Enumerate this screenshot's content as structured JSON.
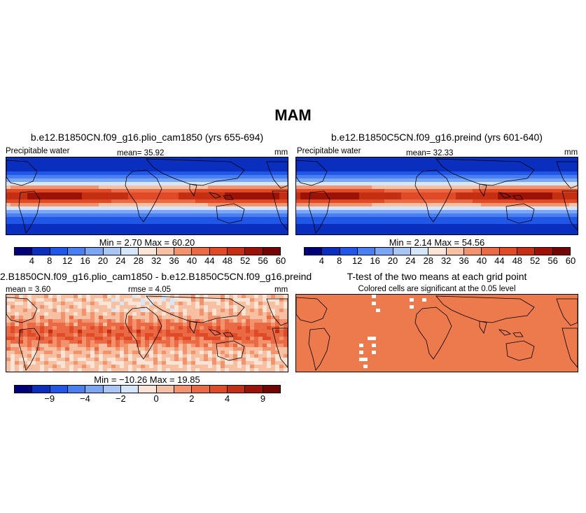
{
  "title": "MAM",
  "colors": {
    "seq": [
      "#00007a",
      "#0a2fbe",
      "#2157e6",
      "#4a7ff2",
      "#7aa6f4",
      "#a8c7f6",
      "#d6e6fa",
      "#fbe4d5",
      "#f7c0a3",
      "#f2936d",
      "#ea6a45",
      "#e04a26",
      "#c42e12",
      "#9b1207",
      "#750505"
    ],
    "land": "#000000"
  },
  "panels": {
    "p1": {
      "title": "b.e12.B1850CN.f09_g16.plio_cam1850 (yrs 655-694)",
      "left_label": "Precipitable water",
      "center_label": "mean=  35.92",
      "right_label": "mm",
      "stats": "Min =     2.70  Max =    60.20"
    },
    "p2": {
      "title": "b.e12.B1850C5CN.f09_g16.preind (yrs 601-640)",
      "left_label": "Precipitable water",
      "center_label": "mean=  32.33",
      "right_label": "mm",
      "stats": "Min =     2.14  Max =    54.56"
    },
    "p3": {
      "title": "2.B1850CN.f09_g16.plio_cam1850 - b.e12.B1850C5CN.f09_g16.preind",
      "left_label": "mean =   3.60",
      "center_label": "rmse =    4.05",
      "right_label": "mm",
      "stats": "Min =  −10.26  Max =    19.85"
    },
    "p4": {
      "title": "T-test of the two means at each grid point",
      "subtitle": "Colored cells are significant at the 0.05 level"
    }
  },
  "colorbars": {
    "abs_labels": [
      "4",
      "8",
      "12",
      "16",
      "20",
      "24",
      "28",
      "32",
      "36",
      "40",
      "44",
      "48",
      "52",
      "56",
      "60"
    ],
    "diff_labels": [
      "−9",
      "−4",
      "−2",
      "0",
      "2",
      "4",
      "9"
    ]
  }
}
